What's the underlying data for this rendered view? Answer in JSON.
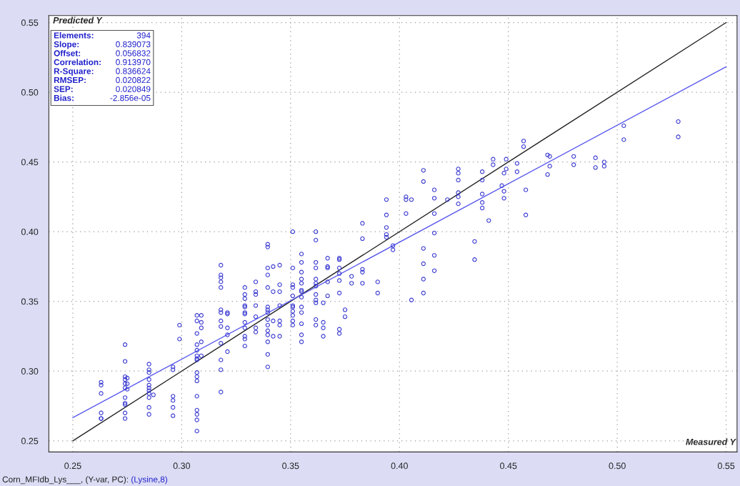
{
  "chart_data": {
    "type": "scatter",
    "xlabel": "Measured Y",
    "ylabel": "Predicted Y",
    "annotations": [
      "Elements: 394",
      "Slope: 0.839073",
      "Offset: 0.056832",
      "Correlation: 0.913970",
      "R-Square: 0.836624",
      "RMSEP: 0.020822",
      "SEP: 0.020849",
      "Bias: -2.856e-05",
      "Corn_MFIdb_Lys___, (Y-var, PC):",
      "(Lysine,8)"
    ],
    "xlim": [
      0.239,
      0.555
    ],
    "ylim": [
      0.242,
      0.555
    ],
    "xticks": [
      {
        "value": 0.25,
        "label": "0.25"
      },
      {
        "value": 0.3,
        "label": "0.30"
      },
      {
        "value": 0.35,
        "label": "0.35"
      },
      {
        "value": 0.4,
        "label": "0.40"
      },
      {
        "value": 0.45,
        "label": "0.45"
      },
      {
        "value": 0.5,
        "label": "0.50"
      },
      {
        "value": 0.55,
        "label": "0.55"
      }
    ],
    "yticks": [
      {
        "value": 0.25,
        "label": "0.25"
      },
      {
        "value": 0.3,
        "label": "0.30"
      },
      {
        "value": 0.35,
        "label": "0.35"
      },
      {
        "value": 0.4,
        "label": "0.40"
      },
      {
        "value": 0.45,
        "label": "0.45"
      },
      {
        "value": 0.5,
        "label": "0.50"
      },
      {
        "value": 0.55,
        "label": "0.55"
      }
    ],
    "grid": true,
    "line_style": "solid",
    "series": [
      {
        "marker": "circle",
        "color": "#3c3cd2",
        "x": [
          0.263,
          0.263,
          0.263,
          0.263,
          0.263,
          0.263,
          0.274,
          0.274,
          0.274,
          0.274,
          0.274,
          0.274,
          0.274,
          0.274,
          0.274,
          0.274,
          0.274,
          0.275,
          0.275,
          0.275,
          0.285,
          0.285,
          0.285,
          0.285,
          0.285,
          0.285,
          0.285,
          0.285,
          0.285,
          0.285,
          0.285,
          0.287,
          0.296,
          0.296,
          0.296,
          0.296,
          0.296,
          0.296,
          0.299,
          0.299,
          0.307,
          0.307,
          0.307,
          0.307,
          0.307,
          0.307,
          0.307,
          0.307,
          0.307,
          0.307,
          0.307,
          0.307,
          0.307,
          0.307,
          0.307,
          0.307,
          0.309,
          0.309,
          0.309,
          0.309,
          0.309,
          0.318,
          0.318,
          0.318,
          0.318,
          0.318,
          0.318,
          0.318,
          0.318,
          0.318,
          0.318,
          0.318,
          0.318,
          0.318,
          0.321,
          0.321,
          0.321,
          0.321,
          0.321,
          0.329,
          0.329,
          0.329,
          0.329,
          0.329,
          0.329,
          0.329,
          0.329,
          0.329,
          0.329,
          0.329,
          0.329,
          0.334,
          0.334,
          0.334,
          0.334,
          0.334,
          0.334,
          0.334,
          0.3395,
          0.3395,
          0.3395,
          0.3395,
          0.3395,
          0.3395,
          0.3395,
          0.3395,
          0.3395,
          0.3395,
          0.3395,
          0.3395,
          0.3395,
          0.3395,
          0.3395,
          0.342,
          0.342,
          0.342,
          0.342,
          0.345,
          0.345,
          0.345,
          0.345,
          0.345,
          0.345,
          0.345,
          0.351,
          0.351,
          0.351,
          0.351,
          0.351,
          0.351,
          0.351,
          0.351,
          0.351,
          0.351,
          0.351,
          0.355,
          0.355,
          0.355,
          0.355,
          0.355,
          0.355,
          0.355,
          0.355,
          0.355,
          0.355,
          0.355,
          0.355,
          0.355,
          0.3616,
          0.3616,
          0.3616,
          0.3616,
          0.3616,
          0.3616,
          0.3616,
          0.3616,
          0.3616,
          0.3616,
          0.3616,
          0.3616,
          0.365,
          0.365,
          0.365,
          0.365,
          0.367,
          0.367,
          0.367,
          0.367,
          0.367,
          0.3724,
          0.3724,
          0.3724,
          0.3724,
          0.3724,
          0.3724,
          0.3724,
          0.3724,
          0.375,
          0.375,
          0.378,
          0.378,
          0.383,
          0.383,
          0.383,
          0.383,
          0.383,
          0.39,
          0.39,
          0.394,
          0.394,
          0.394,
          0.394,
          0.394,
          0.397,
          0.397,
          0.403,
          0.403,
          0.403,
          0.4055,
          0.4055,
          0.411,
          0.411,
          0.411,
          0.411,
          0.411,
          0.411,
          0.416,
          0.416,
          0.416,
          0.416,
          0.416,
          0.416,
          0.422,
          0.427,
          0.427,
          0.427,
          0.427,
          0.427,
          0.427,
          0.4345,
          0.4345,
          0.438,
          0.438,
          0.438,
          0.438,
          0.438,
          0.441,
          0.443,
          0.443,
          0.447,
          0.448,
          0.448,
          0.448,
          0.449,
          0.449,
          0.454,
          0.454,
          0.457,
          0.457,
          0.458,
          0.458,
          0.468,
          0.468,
          0.469,
          0.469,
          0.48,
          0.48,
          0.49,
          0.49,
          0.494,
          0.494,
          0.503,
          0.503,
          0.528,
          0.528
        ],
        "values": [
          0.292,
          0.29,
          0.284,
          0.27,
          0.266,
          0.266,
          0.319,
          0.307,
          0.296,
          0.294,
          0.291,
          0.288,
          0.281,
          0.277,
          0.276,
          0.27,
          0.266,
          0.295,
          0.291,
          0.287,
          0.305,
          0.301,
          0.299,
          0.294,
          0.29,
          0.288,
          0.286,
          0.284,
          0.281,
          0.274,
          0.269,
          0.283,
          0.303,
          0.301,
          0.282,
          0.279,
          0.274,
          0.268,
          0.333,
          0.323,
          0.34,
          0.336,
          0.327,
          0.319,
          0.315,
          0.311,
          0.309,
          0.308,
          0.299,
          0.296,
          0.293,
          0.282,
          0.272,
          0.269,
          0.265,
          0.257,
          0.335,
          0.34,
          0.331,
          0.321,
          0.311,
          0.376,
          0.369,
          0.367,
          0.364,
          0.36,
          0.344,
          0.342,
          0.336,
          0.332,
          0.32,
          0.308,
          0.301,
          0.285,
          0.342,
          0.341,
          0.314,
          0.326,
          0.331,
          0.36,
          0.355,
          0.352,
          0.347,
          0.346,
          0.342,
          0.341,
          0.335,
          0.331,
          0.325,
          0.323,
          0.318,
          0.364,
          0.355,
          0.357,
          0.347,
          0.339,
          0.331,
          0.328,
          0.391,
          0.389,
          0.374,
          0.369,
          0.36,
          0.346,
          0.344,
          0.342,
          0.337,
          0.333,
          0.329,
          0.326,
          0.321,
          0.312,
          0.303,
          0.375,
          0.357,
          0.336,
          0.325,
          0.376,
          0.357,
          0.347,
          0.336,
          0.333,
          0.325,
          0.362,
          0.4,
          0.374,
          0.362,
          0.36,
          0.354,
          0.347,
          0.346,
          0.343,
          0.34,
          0.336,
          0.333,
          0.384,
          0.378,
          0.371,
          0.366,
          0.363,
          0.358,
          0.357,
          0.353,
          0.346,
          0.342,
          0.334,
          0.326,
          0.321,
          0.4,
          0.394,
          0.378,
          0.374,
          0.366,
          0.363,
          0.361,
          0.355,
          0.351,
          0.349,
          0.337,
          0.333,
          0.349,
          0.335,
          0.331,
          0.325,
          0.381,
          0.375,
          0.374,
          0.364,
          0.354,
          0.381,
          0.38,
          0.374,
          0.37,
          0.365,
          0.356,
          0.33,
          0.327,
          0.344,
          0.339,
          0.368,
          0.363,
          0.406,
          0.395,
          0.373,
          0.371,
          0.363,
          0.364,
          0.356,
          0.423,
          0.412,
          0.403,
          0.398,
          0.396,
          0.39,
          0.387,
          0.425,
          0.423,
          0.413,
          0.423,
          0.351,
          0.444,
          0.436,
          0.388,
          0.377,
          0.366,
          0.356,
          0.43,
          0.424,
          0.413,
          0.399,
          0.383,
          0.372,
          0.423,
          0.445,
          0.442,
          0.437,
          0.428,
          0.425,
          0.42,
          0.393,
          0.38,
          0.443,
          0.437,
          0.427,
          0.421,
          0.417,
          0.408,
          0.452,
          0.448,
          0.433,
          0.429,
          0.424,
          0.442,
          0.445,
          0.452,
          0.449,
          0.443,
          0.465,
          0.461,
          0.43,
          0.412,
          0.455,
          0.441,
          0.454,
          0.447,
          0.454,
          0.448,
          0.453,
          0.446,
          0.45,
          0.447,
          0.476,
          0.466,
          0.479,
          0.468
        ]
      },
      {
        "type": "line",
        "color": "#222222",
        "x": [
          0.25,
          0.55
        ],
        "values": [
          0.25,
          0.55
        ]
      },
      {
        "type": "line",
        "color": "#5a5aee",
        "x": [
          0.25,
          0.55
        ],
        "values": [
          0.2666,
          0.5183
        ]
      }
    ]
  }
}
